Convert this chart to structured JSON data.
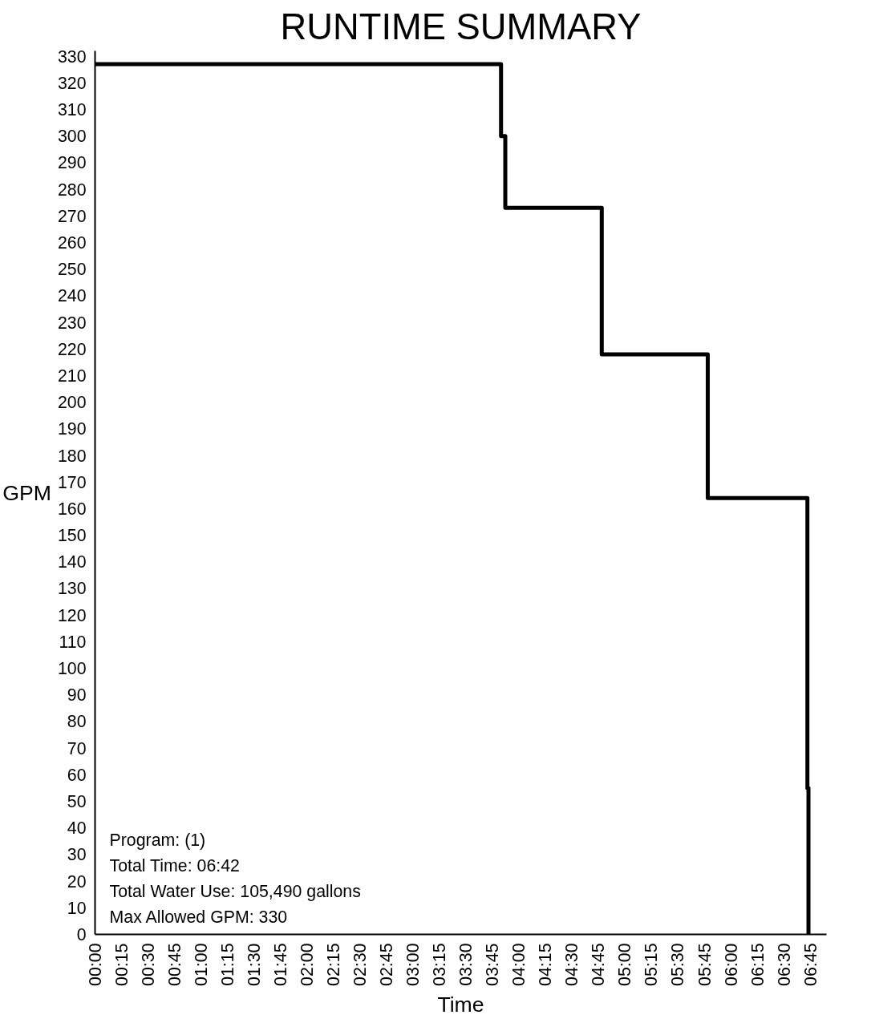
{
  "chart_data": {
    "type": "step",
    "title": "RUNTIME SUMMARY",
    "xlabel": "Time",
    "ylabel": "GPM",
    "x": [
      0,
      3.83,
      3.87,
      4.78,
      5.78,
      6.72,
      6.73
    ],
    "series": [
      {
        "color": "#000000",
        "values": [
          327,
          300,
          273,
          218,
          164,
          55,
          0
        ]
      }
    ],
    "xlim": [
      0,
      6.9
    ],
    "ylim": [
      0,
      332
    ],
    "xticks": [
      {
        "value": 0,
        "label": "00:00"
      },
      {
        "value": 0.25,
        "label": "00:15"
      },
      {
        "value": 0.5,
        "label": "00:30"
      },
      {
        "value": 0.75,
        "label": "00:45"
      },
      {
        "value": 1,
        "label": "01:00"
      },
      {
        "value": 1.25,
        "label": "01:15"
      },
      {
        "value": 1.5,
        "label": "01:30"
      },
      {
        "value": 1.75,
        "label": "01:45"
      },
      {
        "value": 2,
        "label": "02:00"
      },
      {
        "value": 2.25,
        "label": "02:15"
      },
      {
        "value": 2.5,
        "label": "02:30"
      },
      {
        "value": 2.75,
        "label": "02:45"
      },
      {
        "value": 3,
        "label": "03:00"
      },
      {
        "value": 3.25,
        "label": "03:15"
      },
      {
        "value": 3.5,
        "label": "03:30"
      },
      {
        "value": 3.75,
        "label": "03:45"
      },
      {
        "value": 4,
        "label": "04:00"
      },
      {
        "value": 4.25,
        "label": "04:15"
      },
      {
        "value": 4.5,
        "label": "04:30"
      },
      {
        "value": 4.75,
        "label": "04:45"
      },
      {
        "value": 5,
        "label": "05:00"
      },
      {
        "value": 5.25,
        "label": "05:15"
      },
      {
        "value": 5.5,
        "label": "05:30"
      },
      {
        "value": 5.75,
        "label": "05:45"
      },
      {
        "value": 6,
        "label": "06:00"
      },
      {
        "value": 6.25,
        "label": "06:15"
      },
      {
        "value": 6.5,
        "label": "06:30"
      },
      {
        "value": 6.75,
        "label": "06:45"
      }
    ],
    "yticks": [
      0,
      10,
      20,
      30,
      40,
      50,
      60,
      70,
      80,
      90,
      100,
      110,
      120,
      130,
      140,
      150,
      160,
      170,
      180,
      190,
      200,
      210,
      220,
      230,
      240,
      250,
      260,
      270,
      280,
      290,
      300,
      310,
      320,
      330
    ],
    "annotations": [
      "Program: (1)",
      "Total Time: 06:42",
      "Total Water Use: 105,490 gallons",
      "Max Allowed GPM: 330"
    ],
    "grid": false,
    "line_style": "solid",
    "marker": "none"
  }
}
